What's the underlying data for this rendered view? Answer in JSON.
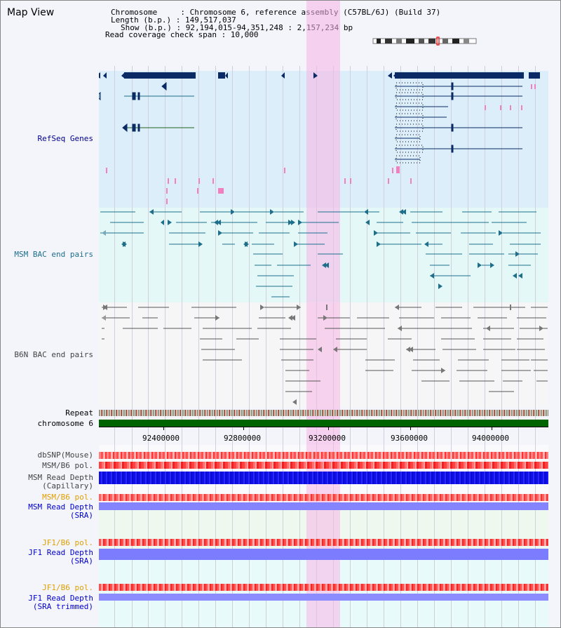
{
  "view_title": "Map View",
  "header": {
    "chromosome_line": "Chromosome     : Chromosome 6, reference assembly (C57BL/6J) (Build 37)",
    "length_line": "Length (b.p.) : 149,517,037",
    "show_line": "Show (b.p.) : 92,194,015-94,351,248 : 2,157,234 bp",
    "span_line": "Read coverage check span : 10,000"
  },
  "tracks": {
    "refseq": "RefSeq Genes",
    "msm_bac": "MSM BAC end pairs",
    "b6n_bac": "B6N BAC end pairs",
    "repeat": "Repeat",
    "chromosome": "chromosome 6",
    "dbsnp": "dbSNP(Mouse)",
    "msm_pol1": "MSM/B6 pol.",
    "msm_depth_cap_1": "MSM Read Depth",
    "msm_depth_cap_2": "(Capillary)",
    "msm_pol2": "MSM/B6 pol.",
    "msm_depth_sra_1": "MSM Read Depth",
    "msm_depth_sra_2": "(SRA)",
    "jf1_pol1": "JF1/B6 pol.",
    "jf1_depth_sra_1": "JF1 Read Depth",
    "jf1_depth_sra_2": "(SRA)",
    "jf1_pol2": "JF1/B6 pol.",
    "jf1_depth_trim_1": "JF1 Read Depth",
    "jf1_depth_trim_2": "(SRA trimmed)"
  },
  "axis": {
    "ticks": [
      "92400000",
      "92800000",
      "93200000",
      "93600000",
      "94000000"
    ]
  },
  "colors": {
    "refseq_bg": "#dbeef9",
    "msm_bg": "#e4f8f8",
    "b6n_bg": "#f4f4f4",
    "highlight": "#f8c8ec",
    "chromosome_bar": "#006400",
    "snp": "#ff3333",
    "depth_cap": "#1010e6",
    "depth_sra": "#8080ff"
  }
}
